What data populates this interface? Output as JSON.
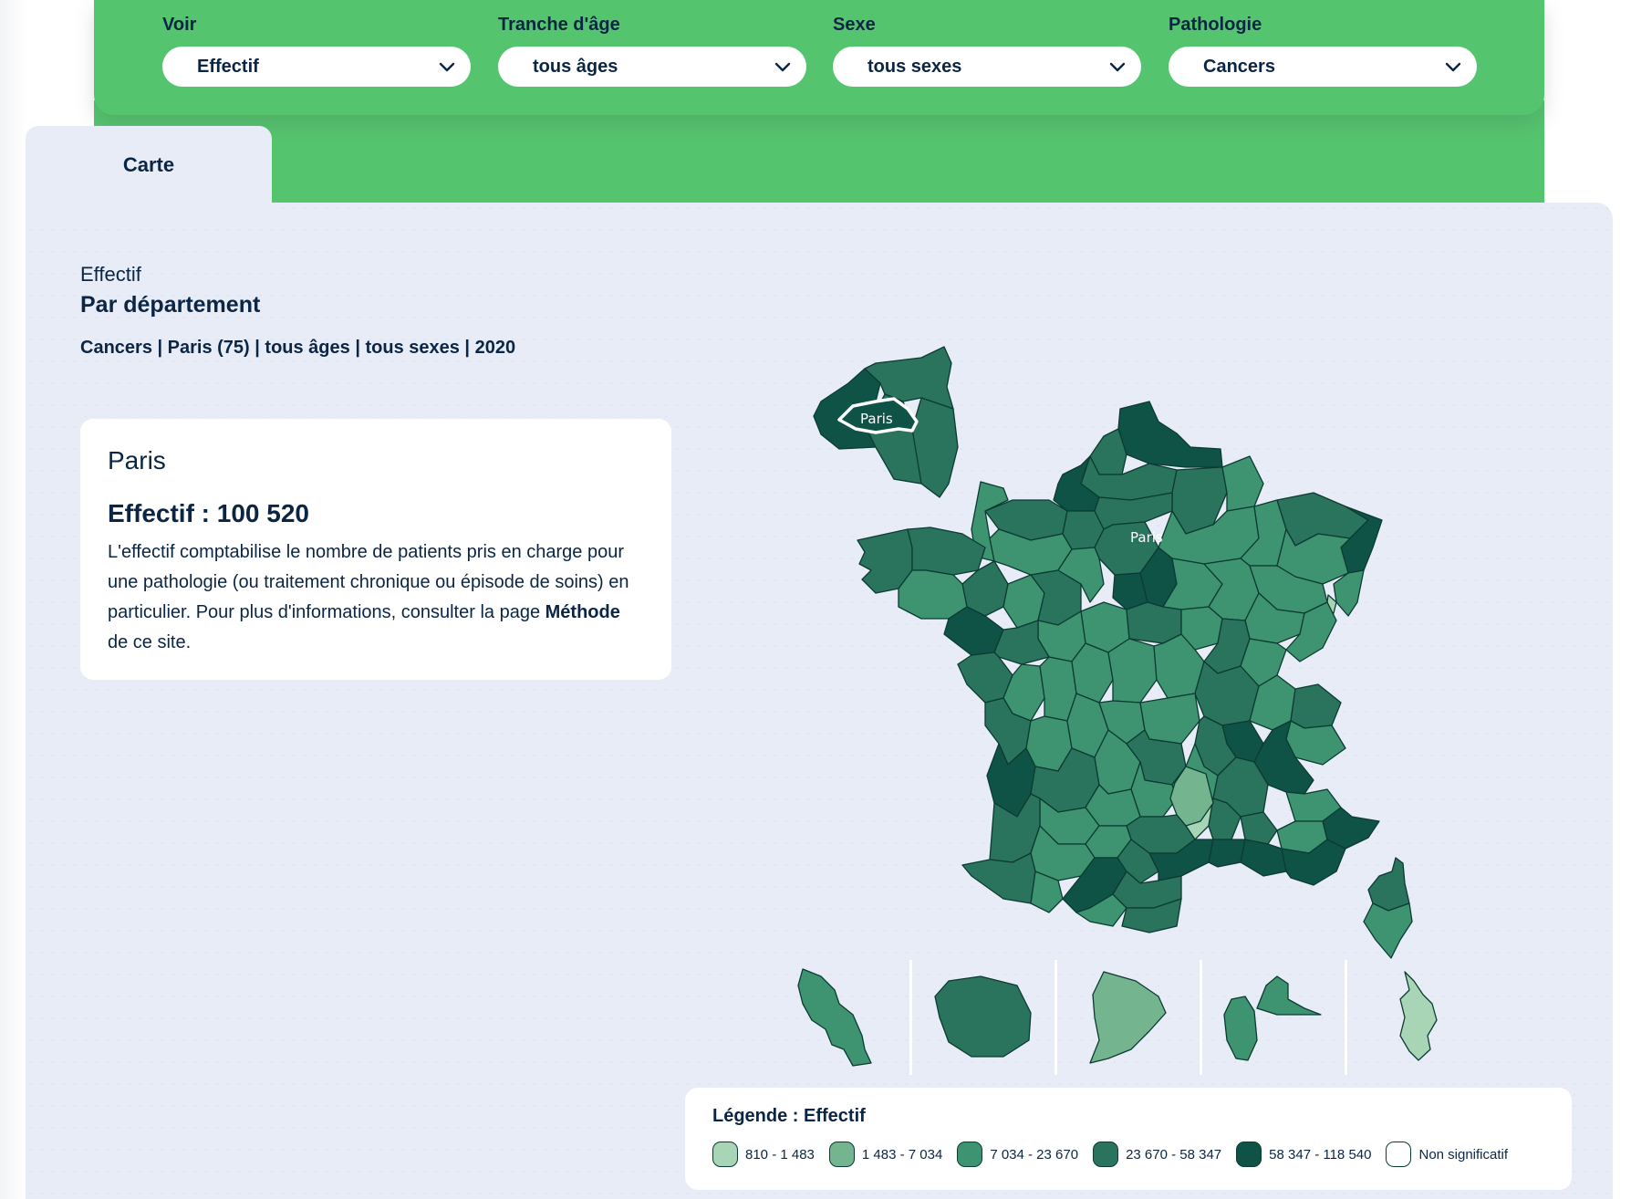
{
  "filters": [
    {
      "label": "Voir",
      "value": "Effectif"
    },
    {
      "label": "Tranche d'âge",
      "value": "tous âges"
    },
    {
      "label": "Sexe",
      "value": "tous sexes"
    },
    {
      "label": "Pathologie",
      "value": "Cancers"
    }
  ],
  "tab": {
    "label": "Carte"
  },
  "header": {
    "indicator": "Effectif",
    "subtitle": "Par département",
    "breadcrumb": "Cancers | Paris (75) | tous âges | tous sexes | 2020"
  },
  "info": {
    "place": "Paris",
    "value": "Effectif : 100 520",
    "desc_pre": "L'effectif comptabilise le nombre de patients pris en charge pour une pathologie (ou traitement chronique ou épisode de soins) en particulier. Pour plus d'informations, consulter la page ",
    "desc_link": "Méthode",
    "desc_post": " de ce site."
  },
  "map": {
    "inset_label": "Paris",
    "main_label": "Paris",
    "colors": {
      "c1": "#a8d5b5",
      "c2": "#74b48e",
      "c3": "#3e9470",
      "c4": "#2a735c",
      "c5": "#0f5346",
      "border": "#0b3b32",
      "selected_outline": "#ffffff"
    }
  },
  "legend": {
    "title": "Légende : Effectif",
    "items": [
      {
        "label": "810 - 1 483",
        "color": "#a8d5b5"
      },
      {
        "label": "1 483 - 7 034",
        "color": "#74b48e"
      },
      {
        "label": "7 034 - 23 670",
        "color": "#3e9470"
      },
      {
        "label": "23 670 - 58 347",
        "color": "#2a735c"
      },
      {
        "label": "58 347 - 118 540",
        "color": "#0f5346"
      },
      {
        "label": "Non significatif",
        "color": "#ffffff"
      }
    ]
  }
}
